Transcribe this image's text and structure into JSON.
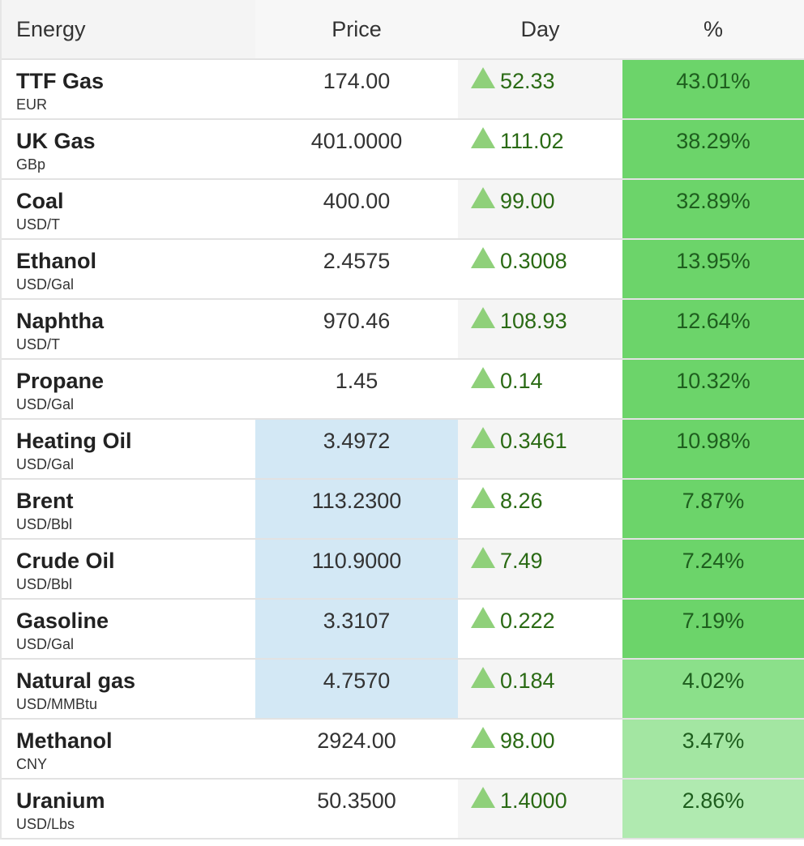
{
  "header": {
    "energy": "Energy",
    "price": "Price",
    "day": "Day",
    "percent": "%"
  },
  "rows": [
    {
      "name": "TTF Gas",
      "unit": "EUR",
      "price": "174.00",
      "day": "52.33",
      "pct": "43.01%",
      "price_highlight": false,
      "pct_color": "#6cd46a"
    },
    {
      "name": "UK Gas",
      "unit": "GBp",
      "price": "401.0000",
      "day": "111.02",
      "pct": "38.29%",
      "price_highlight": false,
      "pct_color": "#6cd46a"
    },
    {
      "name": "Coal",
      "unit": "USD/T",
      "price": "400.00",
      "day": "99.00",
      "pct": "32.89%",
      "price_highlight": false,
      "pct_color": "#6cd46a"
    },
    {
      "name": "Ethanol",
      "unit": "USD/Gal",
      "price": "2.4575",
      "day": "0.3008",
      "pct": "13.95%",
      "price_highlight": false,
      "pct_color": "#6cd46a"
    },
    {
      "name": "Naphtha",
      "unit": "USD/T",
      "price": "970.46",
      "day": "108.93",
      "pct": "12.64%",
      "price_highlight": false,
      "pct_color": "#6cd46a"
    },
    {
      "name": "Propane",
      "unit": "USD/Gal",
      "price": "1.45",
      "day": "0.14",
      "pct": "10.32%",
      "price_highlight": false,
      "pct_color": "#6cd46a"
    },
    {
      "name": "Heating Oil",
      "unit": "USD/Gal",
      "price": "3.4972",
      "day": "0.3461",
      "pct": "10.98%",
      "price_highlight": true,
      "pct_color": "#6cd46a"
    },
    {
      "name": "Brent",
      "unit": "USD/Bbl",
      "price": "113.2300",
      "day": "8.26",
      "pct": "7.87%",
      "price_highlight": true,
      "pct_color": "#6cd46a"
    },
    {
      "name": "Crude Oil",
      "unit": "USD/Bbl",
      "price": "110.9000",
      "day": "7.49",
      "pct": "7.24%",
      "price_highlight": true,
      "pct_color": "#6cd46a"
    },
    {
      "name": "Gasoline",
      "unit": "USD/Gal",
      "price": "3.3107",
      "day": "0.222",
      "pct": "7.19%",
      "price_highlight": true,
      "pct_color": "#6cd46a"
    },
    {
      "name": "Natural gas",
      "unit": "USD/MMBtu",
      "price": "4.7570",
      "day": "0.184",
      "pct": "4.02%",
      "price_highlight": true,
      "pct_color": "#8be08a"
    },
    {
      "name": "Methanol",
      "unit": "CNY",
      "price": "2924.00",
      "day": "98.00",
      "pct": "3.47%",
      "price_highlight": false,
      "pct_color": "#a3e6a2"
    },
    {
      "name": "Uranium",
      "unit": "USD/Lbs",
      "price": "50.3500",
      "day": "1.4000",
      "pct": "2.86%",
      "price_highlight": false,
      "pct_color": "#b0eab0"
    }
  ],
  "colors": {
    "up_arrow": "#8fd07a",
    "day_text": "#2a6a14",
    "price_highlight": "#d3e8f5"
  }
}
